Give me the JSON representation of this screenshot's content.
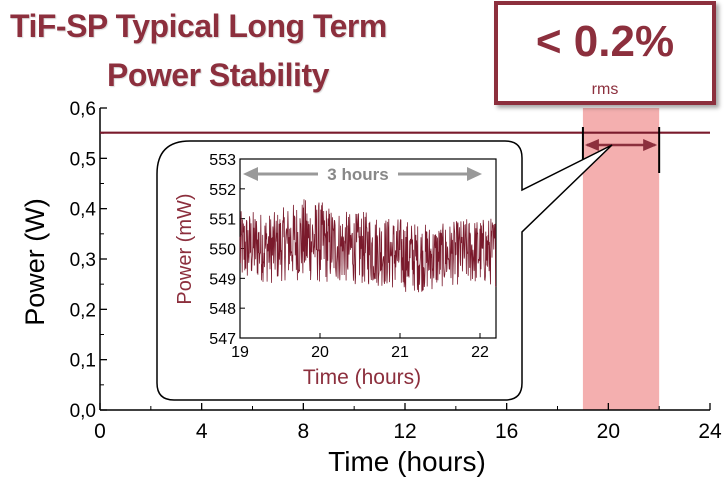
{
  "header": {
    "title_line1": "TiF-SP Typical Long Term",
    "title_line2": "Power Stability"
  },
  "badge": {
    "value": "< 0.2%",
    "unit": "rms"
  },
  "colors": {
    "accent": "#8c2f3d",
    "series": "#7a1a2c",
    "highlight": "#f3a6a6",
    "arrow_gray": "#999999"
  },
  "chart_data": [
    {
      "type": "line",
      "title": "",
      "xlabel": "Time (hours)",
      "ylabel": "Power (W)",
      "xlim": [
        0,
        24
      ],
      "ylim": [
        0,
        0.6
      ],
      "x_ticks": [
        0,
        4,
        8,
        12,
        16,
        20,
        24
      ],
      "x_tick_labels": [
        "0",
        "4",
        "8",
        "12",
        "16",
        "20",
        "24"
      ],
      "y_ticks": [
        0,
        0.1,
        0.2,
        0.3,
        0.4,
        0.5,
        0.6
      ],
      "y_tick_labels": [
        "0,0",
        "0,1",
        "0,2",
        "0,3",
        "0,4",
        "0,5",
        "0,6"
      ],
      "grid": false,
      "series": [
        {
          "x": [
            0,
            4,
            8,
            12,
            16,
            20,
            24
          ],
          "y": [
            0.551,
            0.551,
            0.551,
            0.551,
            0.551,
            0.551,
            0.551
          ]
        }
      ],
      "highlight_range": [
        19,
        22
      ]
    },
    {
      "type": "line",
      "title": "",
      "xlabel": "Time (hours)",
      "ylabel": "Power (mW)",
      "xlim": [
        19,
        22.2
      ],
      "ylim": [
        547,
        553
      ],
      "x_ticks": [
        19,
        20,
        21,
        22
      ],
      "x_tick_labels": [
        "19",
        "20",
        "21",
        "22"
      ],
      "y_ticks": [
        547,
        548,
        549,
        550,
        551,
        552,
        553
      ],
      "y_tick_labels": [
        "547",
        "548",
        "549",
        "550",
        "551",
        "552",
        "553"
      ],
      "annotation": "3 hours",
      "series": [
        {
          "x": [
            19.0,
            19.2,
            19.4,
            19.6,
            19.8,
            20.0,
            20.2,
            20.4,
            20.6,
            20.8,
            21.0,
            21.2,
            21.4,
            21.6,
            21.8,
            22.0,
            22.2
          ],
          "y": [
            550.0,
            550.1,
            550.0,
            550.2,
            550.3,
            550.2,
            550.1,
            550.0,
            550.0,
            549.9,
            549.8,
            549.7,
            549.7,
            549.8,
            549.9,
            549.9,
            549.9
          ],
          "band": [
            1.8,
            1.7,
            1.7,
            1.8,
            2.0,
            2.0,
            1.8,
            1.7,
            1.8,
            1.7,
            1.8,
            1.7,
            1.6,
            1.5,
            1.6,
            1.6,
            1.7
          ]
        }
      ]
    }
  ]
}
